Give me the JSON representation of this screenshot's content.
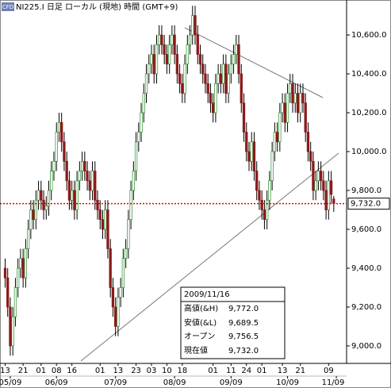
{
  "chart_data": {
    "type": "candlestick",
    "icon": "CFD",
    "title": "NI225.I 日足 ローカル (現地) 時間 (GMT+9)",
    "open": [
      9400,
      9350,
      9200,
      9000,
      9150,
      9300,
      9400,
      9450,
      9350,
      9500,
      9600,
      9700,
      9650,
      9750,
      9800,
      9750,
      9700,
      9720,
      9800,
      9900,
      9950,
      10100,
      10150,
      10050,
      9950,
      9850,
      9750,
      9800,
      9700,
      9850,
      9900,
      9950,
      9900,
      9850,
      9800,
      9900,
      9750,
      9700,
      9650,
      9600,
      9700,
      9500,
      9300,
      9200,
      9100,
      9250,
      9300,
      9450,
      9500,
      9650,
      9800,
      9900,
      10050,
      10100,
      10200,
      10300,
      10400,
      10450,
      10500,
      10400,
      10550,
      10600,
      10550,
      10500,
      10450,
      10550,
      10600,
      10500,
      10400,
      10350,
      10300,
      10450,
      10550,
      10600,
      10700,
      10600,
      10500,
      10450,
      10400,
      10350,
      10300,
      10250,
      10200,
      10350,
      10400,
      10350,
      10450,
      10300,
      10400,
      10450,
      10500,
      10550,
      10400,
      10250,
      10100,
      10000,
      9950,
      10050,
      9900,
      9800,
      9750,
      9700,
      9650,
      9750,
      9850,
      10000,
      10100,
      10050,
      10200,
      10250,
      10150,
      10300,
      10350,
      10250,
      10300,
      10200,
      10300,
      10250,
      10100,
      10000,
      9950,
      9800,
      9850,
      9900,
      9850,
      9800,
      9700,
      9850,
      9756.5
    ],
    "high": [
      9450,
      9400,
      9250,
      9200,
      9350,
      9450,
      9500,
      9500,
      9550,
      9650,
      9750,
      9750,
      9800,
      9850,
      9850,
      9800,
      9770,
      9850,
      9950,
      10000,
      10150,
      10200,
      10200,
      10100,
      10000,
      9900,
      9850,
      9850,
      9900,
      9950,
      10000,
      10000,
      9950,
      9900,
      9950,
      9950,
      9800,
      9750,
      9700,
      9750,
      9750,
      9550,
      9350,
      9250,
      9300,
      9350,
      9500,
      9550,
      9700,
      9850,
      9950,
      10100,
      10150,
      10250,
      10350,
      10450,
      10500,
      10550,
      10550,
      10600,
      10650,
      10650,
      10600,
      10550,
      10600,
      10650,
      10650,
      10550,
      10450,
      10400,
      10500,
      10600,
      10650,
      10750,
      10750,
      10650,
      10550,
      10500,
      10450,
      10400,
      10350,
      10300,
      10400,
      10450,
      10450,
      10500,
      10500,
      10450,
      10500,
      10550,
      10600,
      10600,
      10450,
      10300,
      10150,
      10050,
      10100,
      10100,
      9950,
      9850,
      9800,
      9750,
      9800,
      9900,
      10050,
      10150,
      10150,
      10250,
      10300,
      10300,
      10350,
      10400,
      10400,
      10350,
      10350,
      10350,
      10350,
      10300,
      10150,
      10050,
      10000,
      9900,
      9950,
      9950,
      9900,
      9850,
      9900,
      9900,
      9772
    ],
    "low": [
      9300,
      9150,
      8950,
      8950,
      9100,
      9250,
      9350,
      9300,
      9300,
      9450,
      9550,
      9600,
      9600,
      9700,
      9700,
      9650,
      9650,
      9670,
      9750,
      9850,
      9900,
      10050,
      10000,
      9900,
      9800,
      9700,
      9700,
      9650,
      9650,
      9800,
      9850,
      9850,
      9800,
      9750,
      9750,
      9700,
      9650,
      9600,
      9550,
      9550,
      9450,
      9250,
      9150,
      9050,
      9050,
      9200,
      9250,
      9400,
      9450,
      9600,
      9750,
      9850,
      10000,
      10050,
      10150,
      10250,
      10350,
      10400,
      10350,
      10350,
      10500,
      10500,
      10450,
      10400,
      10400,
      10500,
      10450,
      10350,
      10300,
      10250,
      10250,
      10400,
      10500,
      10550,
      10550,
      10450,
      10400,
      10350,
      10300,
      10250,
      10200,
      10150,
      10150,
      10300,
      10300,
      10300,
      10250,
      10250,
      10350,
      10400,
      10450,
      10350,
      10200,
      10050,
      9950,
      9900,
      9900,
      9850,
      9750,
      9700,
      9650,
      9600,
      9600,
      9700,
      9800,
      9950,
      10000,
      10000,
      10150,
      10100,
      10100,
      10250,
      10200,
      10200,
      10150,
      10150,
      10200,
      10050,
      9950,
      9900,
      9750,
      9750,
      9800,
      9800,
      9750,
      9650,
      9650,
      9730,
      9689.5
    ],
    "close": [
      9350,
      9200,
      9000,
      9150,
      9300,
      9400,
      9450,
      9350,
      9500,
      9600,
      9700,
      9650,
      9750,
      9800,
      9750,
      9700,
      9720,
      9800,
      9900,
      9950,
      10100,
      10150,
      10050,
      9950,
      9850,
      9750,
      9800,
      9700,
      9850,
      9900,
      9950,
      9900,
      9850,
      9800,
      9900,
      9750,
      9700,
      9650,
      9600,
      9700,
      9500,
      9300,
      9200,
      9100,
      9250,
      9300,
      9450,
      9500,
      9650,
      9800,
      9900,
      10050,
      10100,
      10200,
      10300,
      10400,
      10450,
      10500,
      10400,
      10550,
      10600,
      10550,
      10500,
      10450,
      10550,
      10600,
      10500,
      10400,
      10350,
      10300,
      10450,
      10550,
      10600,
      10700,
      10600,
      10500,
      10450,
      10400,
      10350,
      10300,
      10250,
      10200,
      10350,
      10400,
      10350,
      10450,
      10300,
      10400,
      10450,
      10500,
      10550,
      10400,
      10250,
      10100,
      10000,
      9950,
      10050,
      9900,
      9800,
      9750,
      9700,
      9650,
      9750,
      9850,
      10000,
      10100,
      10050,
      10200,
      10250,
      10150,
      10300,
      10350,
      10250,
      10300,
      10200,
      10300,
      10250,
      10100,
      10000,
      9950,
      9800,
      9850,
      9900,
      9850,
      9800,
      9700,
      9850,
      9780,
      9732
    ],
    "up_color": "#2e8b2e",
    "down_color": "#8b1a1a",
    "xlim": [
      -2,
      133
    ],
    "ylim": [
      8910,
      10780
    ],
    "yticks": [
      {
        "value": 9000,
        "label": "9,000.0"
      },
      {
        "value": 9200,
        "label": "9,200.0"
      },
      {
        "value": 9400,
        "label": "9,400.0"
      },
      {
        "value": 9600,
        "label": "9,600.0"
      },
      {
        "value": 9800,
        "label": "9,800.0"
      },
      {
        "value": 10000,
        "label": "10,000.0"
      },
      {
        "value": 10200,
        "label": "10,200.0"
      },
      {
        "value": 10400,
        "label": "10,400.0"
      },
      {
        "value": 10600,
        "label": "10,600.0"
      }
    ],
    "xticks": [
      {
        "value": 0,
        "label": "13"
      },
      {
        "value": 7,
        "label": "21"
      },
      {
        "value": 14,
        "label": "01"
      },
      {
        "value": 20,
        "label": "08"
      },
      {
        "value": 26,
        "label": "16"
      },
      {
        "value": 37,
        "label": "01"
      },
      {
        "value": 44,
        "label": "13"
      },
      {
        "value": 51,
        "label": "23"
      },
      {
        "value": 57,
        "label": "03"
      },
      {
        "value": 63,
        "label": "10"
      },
      {
        "value": 69,
        "label": "18"
      },
      {
        "value": 81,
        "label": "01"
      },
      {
        "value": 88,
        "label": "11"
      },
      {
        "value": 94,
        "label": "24"
      },
      {
        "value": 100,
        "label": "01"
      },
      {
        "value": 108,
        "label": "13"
      },
      {
        "value": 115,
        "label": "21"
      },
      {
        "value": 126,
        "label": "09"
      }
    ],
    "xticks_month": [
      {
        "value": 2,
        "label": "05/09"
      },
      {
        "value": 20,
        "label": "06/09"
      },
      {
        "value": 43,
        "label": "07/09"
      },
      {
        "value": 66,
        "label": "08/09"
      },
      {
        "value": 88,
        "label": "09/09"
      },
      {
        "value": 110,
        "label": "10/09"
      },
      {
        "value": 129,
        "label": "11/09"
      }
    ],
    "current_price": {
      "value": 9732,
      "label": "9,732.0"
    },
    "info_box": {
      "date": "2009/11/16",
      "rows": [
        {
          "label": "高値(&H)",
          "value": "9,772.0"
        },
        {
          "label": "安値(&L)",
          "value": "9,689.5"
        },
        {
          "label": "オープン",
          "value": "9,756.5"
        },
        {
          "label": "現在値",
          "value": "9,732.0"
        }
      ]
    }
  }
}
